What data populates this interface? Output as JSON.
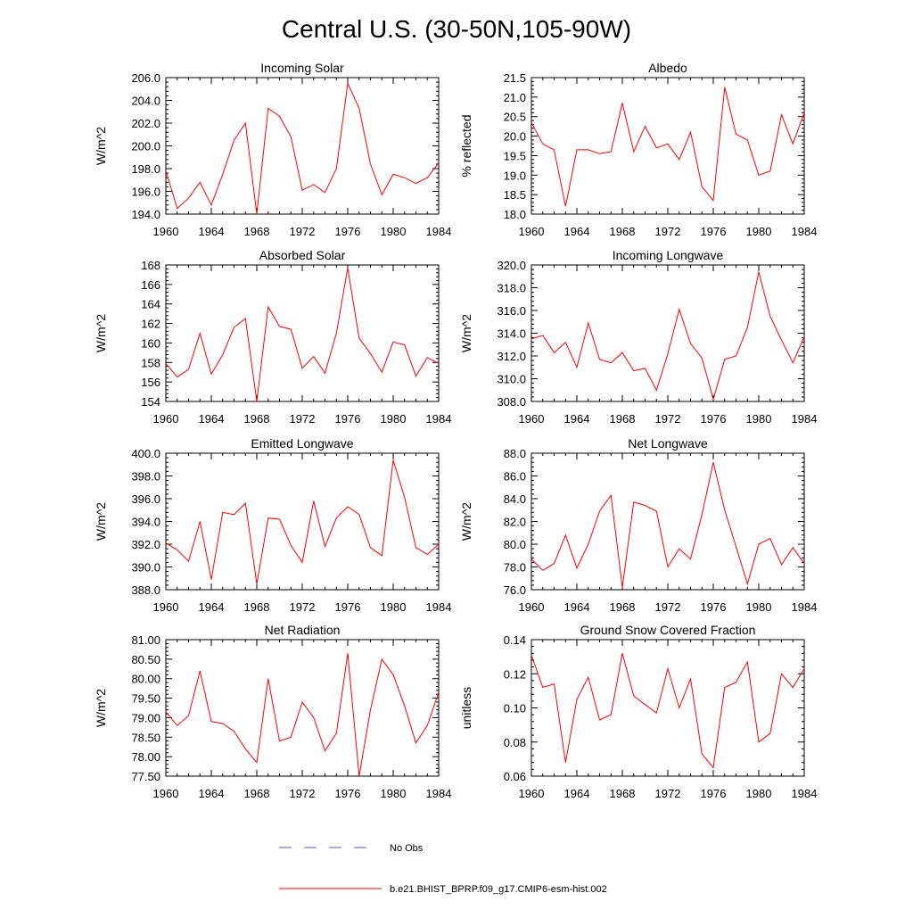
{
  "figure": {
    "title": "Central U.S. (30-50N,105-90W)",
    "legend": [
      {
        "label": "No Obs",
        "color": "#4a5bd0",
        "style": "dashed"
      },
      {
        "label": "b.e21.BHIST_BPRP.f09_g17.CMIP6-esm-hist.002",
        "color": "#ff0000",
        "style": "solid"
      }
    ]
  },
  "chart_data": [
    {
      "type": "line",
      "title": "Incoming Solar",
      "ylabel": "W/m^2",
      "xlim": [
        1960,
        1984
      ],
      "ylim": [
        194.0,
        206.0
      ],
      "xticks": [
        1960,
        1964,
        1968,
        1972,
        1976,
        1980,
        1984
      ],
      "yticks": [
        194.0,
        196.0,
        198.0,
        200.0,
        202.0,
        204.0,
        206.0
      ],
      "ytick_labels": [
        "194.0",
        "196.0",
        "198.0",
        "200.0",
        "202.0",
        "204.0",
        "206.0"
      ],
      "x": [
        1960,
        1961,
        1962,
        1963,
        1964,
        1965,
        1966,
        1967,
        1968,
        1969,
        1970,
        1971,
        1972,
        1973,
        1974,
        1975,
        1976,
        1977,
        1978,
        1979,
        1980,
        1981,
        1982,
        1983,
        1984
      ],
      "series": [
        {
          "color": "#ff0000",
          "values": [
            197.8,
            194.5,
            195.4,
            196.8,
            194.8,
            197.5,
            200.5,
            202.0,
            194.0,
            203.3,
            202.6,
            200.8,
            196.1,
            196.6,
            195.9,
            198.0,
            205.5,
            203.3,
            198.4,
            195.7,
            197.5,
            197.2,
            196.7,
            197.2,
            198.5
          ]
        }
      ]
    },
    {
      "type": "line",
      "title": "Albedo",
      "ylabel": "% reflected",
      "xlim": [
        1960,
        1984
      ],
      "ylim": [
        18.0,
        21.5
      ],
      "xticks": [
        1960,
        1964,
        1968,
        1972,
        1976,
        1980,
        1984
      ],
      "yticks": [
        18.0,
        18.5,
        19.0,
        19.5,
        20.0,
        20.5,
        21.0,
        21.5
      ],
      "ytick_labels": [
        "18.0",
        "18.5",
        "19.0",
        "19.5",
        "20.0",
        "20.5",
        "21.0",
        "21.5"
      ],
      "x": [
        1960,
        1961,
        1962,
        1963,
        1964,
        1965,
        1966,
        1967,
        1968,
        1969,
        1970,
        1971,
        1972,
        1973,
        1974,
        1975,
        1976,
        1977,
        1978,
        1979,
        1980,
        1981,
        1982,
        1983,
        1984
      ],
      "series": [
        {
          "color": "#ff0000",
          "values": [
            20.35,
            19.8,
            19.65,
            18.2,
            19.65,
            19.65,
            19.55,
            19.6,
            20.85,
            19.6,
            20.25,
            19.7,
            19.8,
            19.4,
            20.1,
            18.7,
            18.35,
            21.25,
            20.05,
            19.9,
            19.0,
            19.1,
            20.55,
            19.8,
            20.6
          ]
        }
      ]
    },
    {
      "type": "line",
      "title": "Absorbed Solar",
      "ylabel": "W/m^2",
      "xlim": [
        1960,
        1984
      ],
      "ylim": [
        154,
        168
      ],
      "xticks": [
        1960,
        1964,
        1968,
        1972,
        1976,
        1980,
        1984
      ],
      "yticks": [
        154,
        156,
        158,
        160,
        162,
        164,
        166,
        168
      ],
      "ytick_labels": [
        "154",
        "156",
        "158",
        "160",
        "162",
        "164",
        "166",
        "168"
      ],
      "x": [
        1960,
        1961,
        1962,
        1963,
        1964,
        1965,
        1966,
        1967,
        1968,
        1969,
        1970,
        1971,
        1972,
        1973,
        1974,
        1975,
        1976,
        1977,
        1978,
        1979,
        1980,
        1981,
        1982,
        1983,
        1984
      ],
      "series": [
        {
          "color": "#ff0000",
          "values": [
            157.9,
            156.5,
            157.3,
            161.0,
            156.8,
            158.8,
            161.6,
            162.5,
            154.0,
            163.7,
            161.7,
            161.4,
            157.4,
            158.6,
            156.9,
            161.0,
            167.7,
            160.5,
            158.9,
            157.0,
            160.1,
            159.8,
            156.6,
            158.5,
            157.9
          ]
        }
      ]
    },
    {
      "type": "line",
      "title": "Incoming Longwave",
      "ylabel": "W/m^2",
      "xlim": [
        1960,
        1984
      ],
      "ylim": [
        308.0,
        320.0
      ],
      "xticks": [
        1960,
        1964,
        1968,
        1972,
        1976,
        1980,
        1984
      ],
      "yticks": [
        308.0,
        310.0,
        312.0,
        314.0,
        316.0,
        318.0,
        320.0
      ],
      "ytick_labels": [
        "308.0",
        "310.0",
        "312.0",
        "314.0",
        "316.0",
        "318.0",
        "320.0"
      ],
      "x": [
        1960,
        1961,
        1962,
        1963,
        1964,
        1965,
        1966,
        1967,
        1968,
        1969,
        1970,
        1971,
        1972,
        1973,
        1974,
        1975,
        1976,
        1977,
        1978,
        1979,
        1980,
        1981,
        1982,
        1983,
        1984
      ],
      "series": [
        {
          "color": "#ff0000",
          "values": [
            313.5,
            313.8,
            312.3,
            313.2,
            311.0,
            314.9,
            311.7,
            311.4,
            312.3,
            310.7,
            310.9,
            309.0,
            312.2,
            316.1,
            313.1,
            311.8,
            308.2,
            311.7,
            312.0,
            314.5,
            319.4,
            315.5,
            313.4,
            311.4,
            313.7
          ]
        }
      ]
    },
    {
      "type": "line",
      "title": "Emitted Longwave",
      "ylabel": "W/m^2",
      "xlim": [
        1960,
        1984
      ],
      "ylim": [
        388.0,
        400.0
      ],
      "xticks": [
        1960,
        1964,
        1968,
        1972,
        1976,
        1980,
        1984
      ],
      "yticks": [
        388.0,
        390.0,
        392.0,
        394.0,
        396.0,
        398.0,
        400.0
      ],
      "ytick_labels": [
        "388.0",
        "390.0",
        "392.0",
        "394.0",
        "396.0",
        "398.0",
        "400.0"
      ],
      "x": [
        1960,
        1961,
        1962,
        1963,
        1964,
        1965,
        1966,
        1967,
        1968,
        1969,
        1970,
        1971,
        1972,
        1973,
        1974,
        1975,
        1976,
        1977,
        1978,
        1979,
        1980,
        1981,
        1982,
        1983,
        1984
      ],
      "series": [
        {
          "color": "#ff0000",
          "values": [
            392.1,
            391.5,
            390.5,
            394.0,
            388.9,
            394.8,
            394.6,
            395.6,
            388.5,
            394.3,
            394.2,
            391.9,
            390.4,
            395.8,
            391.8,
            394.3,
            395.3,
            394.6,
            391.7,
            391.0,
            399.4,
            396.1,
            391.7,
            391.1,
            392.0
          ]
        }
      ]
    },
    {
      "type": "line",
      "title": "Net Longwave",
      "ylabel": "W/m^2",
      "xlim": [
        1960,
        1984
      ],
      "ylim": [
        76.0,
        88.0
      ],
      "xticks": [
        1960,
        1964,
        1968,
        1972,
        1976,
        1980,
        1984
      ],
      "yticks": [
        76.0,
        78.0,
        80.0,
        82.0,
        84.0,
        86.0,
        88.0
      ],
      "ytick_labels": [
        "76.0",
        "78.0",
        "80.0",
        "82.0",
        "84.0",
        "86.0",
        "88.0"
      ],
      "x": [
        1960,
        1961,
        1962,
        1963,
        1964,
        1965,
        1966,
        1967,
        1968,
        1969,
        1970,
        1971,
        1972,
        1973,
        1974,
        1975,
        1976,
        1977,
        1978,
        1979,
        1980,
        1981,
        1982,
        1983,
        1984
      ],
      "series": [
        {
          "color": "#ff0000",
          "values": [
            78.7,
            77.7,
            78.3,
            80.8,
            77.9,
            80.0,
            82.9,
            84.3,
            76.2,
            83.7,
            83.4,
            82.9,
            78.0,
            79.6,
            78.7,
            82.6,
            87.2,
            83.0,
            79.8,
            76.5,
            80.0,
            80.5,
            78.2,
            79.7,
            78.3
          ]
        }
      ]
    },
    {
      "type": "line",
      "title": "Net Radiation",
      "ylabel": "W/m^2",
      "xlim": [
        1960,
        1984
      ],
      "ylim": [
        77.5,
        81.0
      ],
      "xticks": [
        1960,
        1964,
        1968,
        1972,
        1976,
        1980,
        1984
      ],
      "yticks": [
        77.5,
        78.0,
        78.5,
        79.0,
        79.5,
        80.0,
        80.5,
        81.0
      ],
      "ytick_labels": [
        "77.50",
        "78.00",
        "78.50",
        "79.00",
        "79.50",
        "80.00",
        "80.50",
        "81.00"
      ],
      "x": [
        1960,
        1961,
        1962,
        1963,
        1964,
        1965,
        1966,
        1967,
        1968,
        1969,
        1970,
        1971,
        1972,
        1973,
        1974,
        1975,
        1976,
        1977,
        1978,
        1979,
        1980,
        1981,
        1982,
        1983,
        1984
      ],
      "series": [
        {
          "color": "#ff0000",
          "values": [
            79.15,
            78.8,
            79.05,
            80.2,
            78.9,
            78.85,
            78.65,
            78.2,
            77.85,
            80.0,
            78.4,
            78.5,
            79.4,
            79.0,
            78.15,
            78.6,
            80.65,
            77.5,
            79.2,
            80.5,
            80.1,
            79.3,
            78.35,
            78.8,
            79.65
          ]
        }
      ]
    },
    {
      "type": "line",
      "title": "Ground Snow Covered Fraction",
      "ylabel": "unitless",
      "xlim": [
        1960,
        1984
      ],
      "ylim": [
        0.06,
        0.14
      ],
      "xticks": [
        1960,
        1964,
        1968,
        1972,
        1976,
        1980,
        1984
      ],
      "yticks": [
        0.06,
        0.08,
        0.1,
        0.12,
        0.14
      ],
      "ytick_labels": [
        "0.06",
        "0.08",
        "0.10",
        "0.12",
        "0.14"
      ],
      "x": [
        1960,
        1961,
        1962,
        1963,
        1964,
        1965,
        1966,
        1967,
        1968,
        1969,
        1970,
        1971,
        1972,
        1973,
        1974,
        1975,
        1976,
        1977,
        1978,
        1979,
        1980,
        1981,
        1982,
        1983,
        1984
      ],
      "series": [
        {
          "color": "#ff0000",
          "values": [
            0.131,
            0.112,
            0.114,
            0.068,
            0.105,
            0.118,
            0.093,
            0.096,
            0.132,
            0.107,
            0.102,
            0.097,
            0.123,
            0.1,
            0.117,
            0.073,
            0.065,
            0.112,
            0.115,
            0.127,
            0.08,
            0.085,
            0.12,
            0.112,
            0.123
          ]
        }
      ]
    }
  ]
}
